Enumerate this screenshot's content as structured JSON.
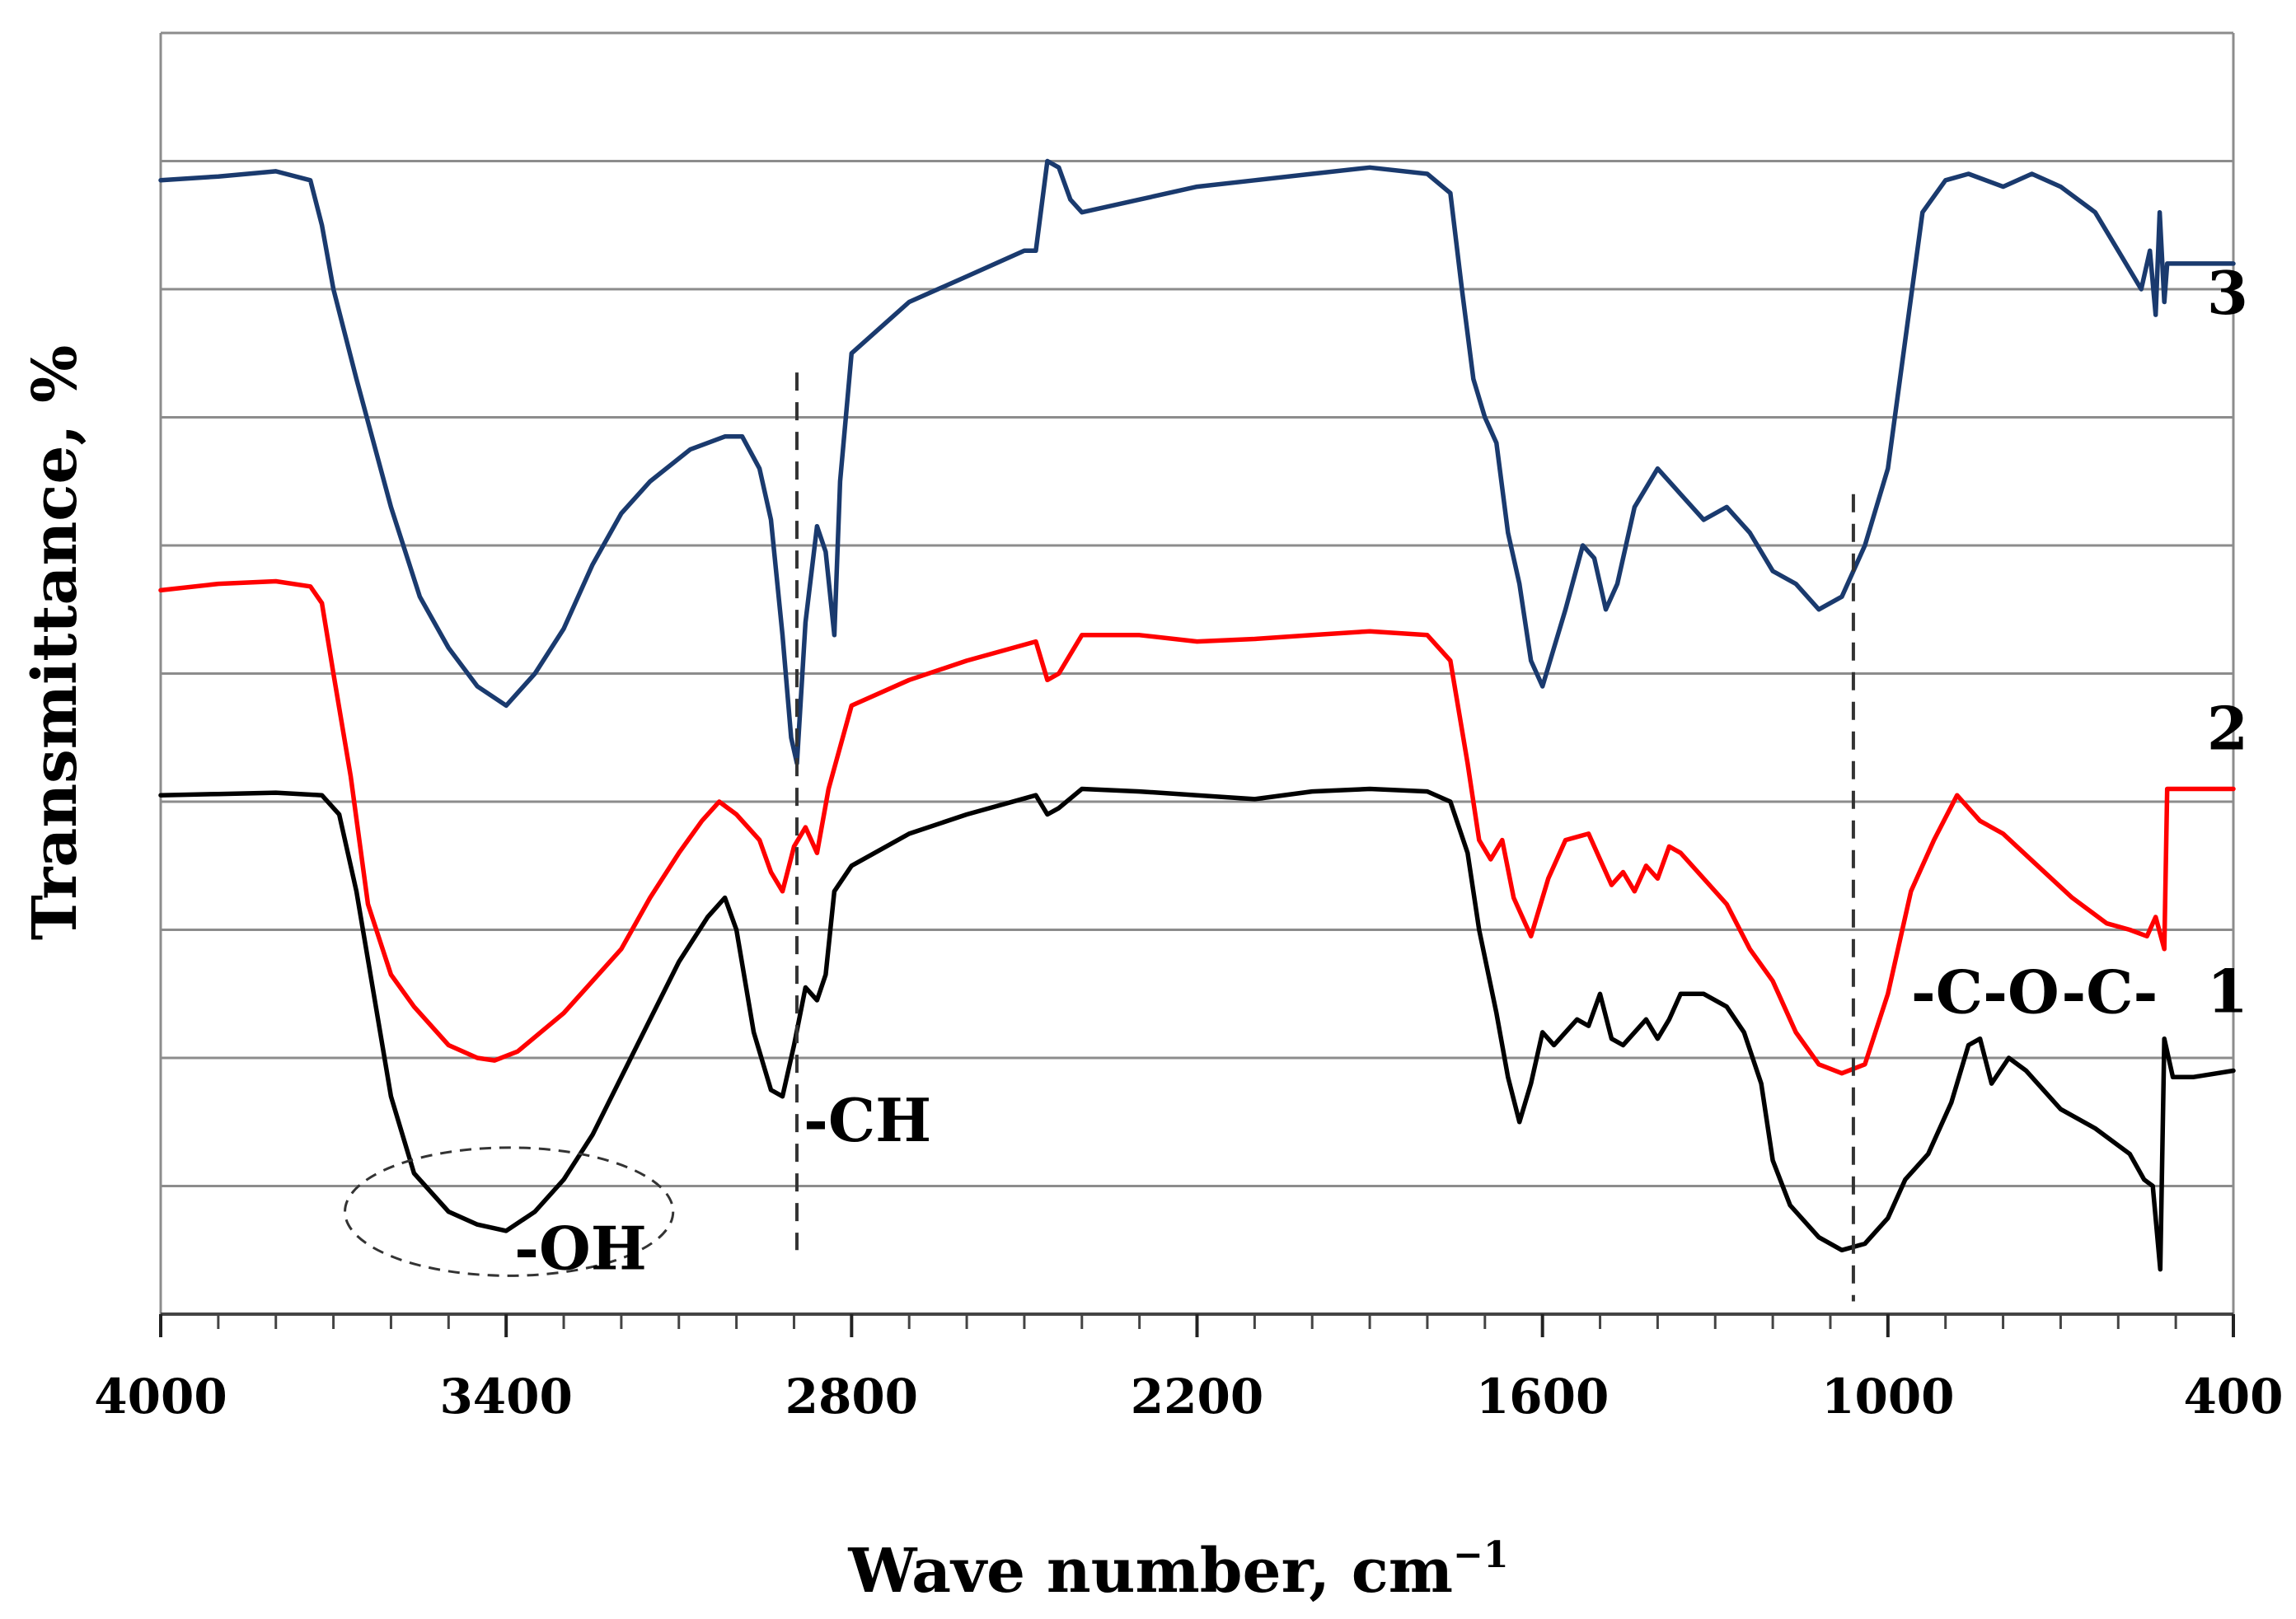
{
  "chart_data": {
    "type": "line",
    "title": "",
    "xlabel": "Wave number, cm",
    "xlabel_superscript": "−1",
    "ylabel": "Transmittance, %",
    "xlim": [
      4000,
      400
    ],
    "x_reversed": true,
    "ylim": [
      0,
      10
    ],
    "grid": "horizontal",
    "gridline_count": 9,
    "xticks": [
      {
        "value": 4000,
        "label": "4000"
      },
      {
        "value": 3400,
        "label": "3400"
      },
      {
        "value": 2800,
        "label": "2800"
      },
      {
        "value": 2200,
        "label": "2200"
      },
      {
        "value": 1600,
        "label": "1600"
      },
      {
        "value": 1000,
        "label": "1000"
      },
      {
        "value": 400,
        "label": "400"
      }
    ],
    "minor_tick_step": 100,
    "series": [
      {
        "name": "1",
        "color": "#000000",
        "points": [
          [
            4000,
            4.05
          ],
          [
            3900,
            4.06
          ],
          [
            3800,
            4.07
          ],
          [
            3720,
            4.05
          ],
          [
            3690,
            3.9
          ],
          [
            3660,
            3.3
          ],
          [
            3630,
            2.5
          ],
          [
            3600,
            1.7
          ],
          [
            3560,
            1.1
          ],
          [
            3500,
            0.8
          ],
          [
            3450,
            0.7
          ],
          [
            3400,
            0.65
          ],
          [
            3350,
            0.8
          ],
          [
            3300,
            1.05
          ],
          [
            3250,
            1.4
          ],
          [
            3200,
            1.85
          ],
          [
            3150,
            2.3
          ],
          [
            3100,
            2.75
          ],
          [
            3050,
            3.1
          ],
          [
            3020,
            3.25
          ],
          [
            3000,
            3.0
          ],
          [
            2970,
            2.2
          ],
          [
            2940,
            1.75
          ],
          [
            2920,
            1.7
          ],
          [
            2900,
            2.1
          ],
          [
            2880,
            2.55
          ],
          [
            2860,
            2.45
          ],
          [
            2845,
            2.65
          ],
          [
            2830,
            3.3
          ],
          [
            2800,
            3.5
          ],
          [
            2700,
            3.75
          ],
          [
            2600,
            3.9
          ],
          [
            2480,
            4.05
          ],
          [
            2460,
            3.9
          ],
          [
            2440,
            3.95
          ],
          [
            2400,
            4.1
          ],
          [
            2300,
            4.08
          ],
          [
            2200,
            4.05
          ],
          [
            2100,
            4.02
          ],
          [
            2000,
            4.08
          ],
          [
            1900,
            4.1
          ],
          [
            1800,
            4.08
          ],
          [
            1760,
            4.0
          ],
          [
            1730,
            3.6
          ],
          [
            1710,
            3.0
          ],
          [
            1680,
            2.35
          ],
          [
            1660,
            1.85
          ],
          [
            1640,
            1.5
          ],
          [
            1620,
            1.8
          ],
          [
            1600,
            2.2
          ],
          [
            1580,
            2.1
          ],
          [
            1540,
            2.3
          ],
          [
            1520,
            2.25
          ],
          [
            1500,
            2.5
          ],
          [
            1480,
            2.15
          ],
          [
            1460,
            2.1
          ],
          [
            1420,
            2.3
          ],
          [
            1400,
            2.15
          ],
          [
            1380,
            2.3
          ],
          [
            1360,
            2.5
          ],
          [
            1320,
            2.5
          ],
          [
            1280,
            2.4
          ],
          [
            1250,
            2.2
          ],
          [
            1220,
            1.8
          ],
          [
            1200,
            1.2
          ],
          [
            1170,
            0.85
          ],
          [
            1120,
            0.6
          ],
          [
            1080,
            0.5
          ],
          [
            1040,
            0.55
          ],
          [
            1000,
            0.75
          ],
          [
            970,
            1.05
          ],
          [
            930,
            1.25
          ],
          [
            890,
            1.65
          ],
          [
            860,
            2.1
          ],
          [
            840,
            2.15
          ],
          [
            820,
            1.8
          ],
          [
            790,
            2.0
          ],
          [
            760,
            1.9
          ],
          [
            700,
            1.6
          ],
          [
            640,
            1.45
          ],
          [
            580,
            1.25
          ],
          [
            555,
            1.05
          ],
          [
            540,
            1.0
          ],
          [
            527,
            0.35
          ],
          [
            520,
            2.15
          ],
          [
            505,
            1.85
          ],
          [
            470,
            1.85
          ],
          [
            400,
            1.9
          ]
        ]
      },
      {
        "name": "2",
        "color": "#ff0000",
        "points": [
          [
            4000,
            5.65
          ],
          [
            3900,
            5.7
          ],
          [
            3800,
            5.72
          ],
          [
            3740,
            5.68
          ],
          [
            3720,
            5.55
          ],
          [
            3700,
            5.0
          ],
          [
            3670,
            4.2
          ],
          [
            3640,
            3.2
          ],
          [
            3600,
            2.65
          ],
          [
            3560,
            2.4
          ],
          [
            3500,
            2.1
          ],
          [
            3450,
            2.0
          ],
          [
            3420,
            1.98
          ],
          [
            3380,
            2.05
          ],
          [
            3300,
            2.35
          ],
          [
            3200,
            2.85
          ],
          [
            3150,
            3.25
          ],
          [
            3100,
            3.6
          ],
          [
            3060,
            3.85
          ],
          [
            3030,
            4.0
          ],
          [
            3000,
            3.9
          ],
          [
            2960,
            3.7
          ],
          [
            2940,
            3.45
          ],
          [
            2920,
            3.3
          ],
          [
            2900,
            3.65
          ],
          [
            2880,
            3.8
          ],
          [
            2860,
            3.6
          ],
          [
            2840,
            4.1
          ],
          [
            2800,
            4.75
          ],
          [
            2700,
            4.95
          ],
          [
            2600,
            5.1
          ],
          [
            2480,
            5.25
          ],
          [
            2460,
            4.95
          ],
          [
            2440,
            5.0
          ],
          [
            2400,
            5.3
          ],
          [
            2300,
            5.3
          ],
          [
            2200,
            5.25
          ],
          [
            2100,
            5.27
          ],
          [
            2000,
            5.3
          ],
          [
            1900,
            5.33
          ],
          [
            1800,
            5.3
          ],
          [
            1760,
            5.1
          ],
          [
            1730,
            4.3
          ],
          [
            1710,
            3.7
          ],
          [
            1690,
            3.55
          ],
          [
            1670,
            3.7
          ],
          [
            1650,
            3.25
          ],
          [
            1620,
            2.95
          ],
          [
            1590,
            3.4
          ],
          [
            1560,
            3.7
          ],
          [
            1520,
            3.75
          ],
          [
            1500,
            3.55
          ],
          [
            1480,
            3.35
          ],
          [
            1460,
            3.45
          ],
          [
            1440,
            3.3
          ],
          [
            1420,
            3.5
          ],
          [
            1400,
            3.4
          ],
          [
            1380,
            3.65
          ],
          [
            1360,
            3.6
          ],
          [
            1320,
            3.4
          ],
          [
            1280,
            3.2
          ],
          [
            1240,
            2.85
          ],
          [
            1200,
            2.6
          ],
          [
            1160,
            2.2
          ],
          [
            1120,
            1.95
          ],
          [
            1080,
            1.88
          ],
          [
            1040,
            1.95
          ],
          [
            1000,
            2.5
          ],
          [
            960,
            3.3
          ],
          [
            920,
            3.7
          ],
          [
            880,
            4.05
          ],
          [
            840,
            3.85
          ],
          [
            800,
            3.75
          ],
          [
            740,
            3.5
          ],
          [
            680,
            3.25
          ],
          [
            620,
            3.05
          ],
          [
            580,
            3.0
          ],
          [
            550,
            2.95
          ],
          [
            535,
            3.1
          ],
          [
            520,
            2.85
          ],
          [
            515,
            4.1
          ],
          [
            400,
            4.1
          ]
        ]
      },
      {
        "name": "3",
        "color": "#1a3a6e",
        "points": [
          [
            4000,
            8.85
          ],
          [
            3900,
            8.88
          ],
          [
            3800,
            8.92
          ],
          [
            3740,
            8.85
          ],
          [
            3720,
            8.5
          ],
          [
            3700,
            8.0
          ],
          [
            3660,
            7.3
          ],
          [
            3600,
            6.3
          ],
          [
            3550,
            5.6
          ],
          [
            3500,
            5.2
          ],
          [
            3450,
            4.9
          ],
          [
            3400,
            4.75
          ],
          [
            3350,
            5.0
          ],
          [
            3300,
            5.35
          ],
          [
            3250,
            5.85
          ],
          [
            3200,
            6.25
          ],
          [
            3150,
            6.5
          ],
          [
            3080,
            6.75
          ],
          [
            3020,
            6.85
          ],
          [
            2990,
            6.85
          ],
          [
            2960,
            6.6
          ],
          [
            2940,
            6.2
          ],
          [
            2920,
            5.3
          ],
          [
            2905,
            4.5
          ],
          [
            2895,
            4.3
          ],
          [
            2880,
            5.4
          ],
          [
            2860,
            6.15
          ],
          [
            2845,
            5.95
          ],
          [
            2830,
            5.3
          ],
          [
            2820,
            6.5
          ],
          [
            2800,
            7.5
          ],
          [
            2700,
            7.9
          ],
          [
            2600,
            8.1
          ],
          [
            2500,
            8.3
          ],
          [
            2480,
            8.3
          ],
          [
            2460,
            9.0
          ],
          [
            2440,
            8.95
          ],
          [
            2420,
            8.7
          ],
          [
            2400,
            8.6
          ],
          [
            2300,
            8.7
          ],
          [
            2200,
            8.8
          ],
          [
            2100,
            8.85
          ],
          [
            2000,
            8.9
          ],
          [
            1900,
            8.95
          ],
          [
            1800,
            8.9
          ],
          [
            1760,
            8.75
          ],
          [
            1740,
            8.0
          ],
          [
            1720,
            7.3
          ],
          [
            1700,
            7.0
          ],
          [
            1680,
            6.8
          ],
          [
            1660,
            6.1
          ],
          [
            1640,
            5.7
          ],
          [
            1620,
            5.1
          ],
          [
            1600,
            4.9
          ],
          [
            1580,
            5.2
          ],
          [
            1560,
            5.5
          ],
          [
            1530,
            6.0
          ],
          [
            1510,
            5.9
          ],
          [
            1490,
            5.5
          ],
          [
            1470,
            5.7
          ],
          [
            1440,
            6.3
          ],
          [
            1400,
            6.6
          ],
          [
            1360,
            6.4
          ],
          [
            1320,
            6.2
          ],
          [
            1280,
            6.3
          ],
          [
            1240,
            6.1
          ],
          [
            1200,
            5.8
          ],
          [
            1160,
            5.7
          ],
          [
            1120,
            5.5
          ],
          [
            1080,
            5.6
          ],
          [
            1040,
            6.0
          ],
          [
            1000,
            6.6
          ],
          [
            970,
            7.6
          ],
          [
            940,
            8.6
          ],
          [
            900,
            8.85
          ],
          [
            860,
            8.9
          ],
          [
            800,
            8.8
          ],
          [
            750,
            8.9
          ],
          [
            700,
            8.8
          ],
          [
            640,
            8.6
          ],
          [
            600,
            8.3
          ],
          [
            560,
            8.0
          ],
          [
            545,
            8.3
          ],
          [
            535,
            7.8
          ],
          [
            528,
            8.6
          ],
          [
            520,
            7.9
          ],
          [
            515,
            8.2
          ],
          [
            400,
            8.2
          ]
        ]
      }
    ],
    "curve_labels": [
      {
        "text": "3",
        "series": "3"
      },
      {
        "text": "2",
        "series": "2"
      },
      {
        "text": "1",
        "series": "1"
      }
    ],
    "annotations": [
      {
        "text": "-OH",
        "x": 3400
      },
      {
        "text": "-CH",
        "x": 2895
      },
      {
        "text": "-C-O-C-",
        "x": 1060
      }
    ],
    "dashed_markers": [
      2895,
      1060
    ],
    "highlight_ellipse": {
      "x_from": 3680,
      "x_to": 3110,
      "y_from": 0.3,
      "y_to": 1.3
    }
  }
}
